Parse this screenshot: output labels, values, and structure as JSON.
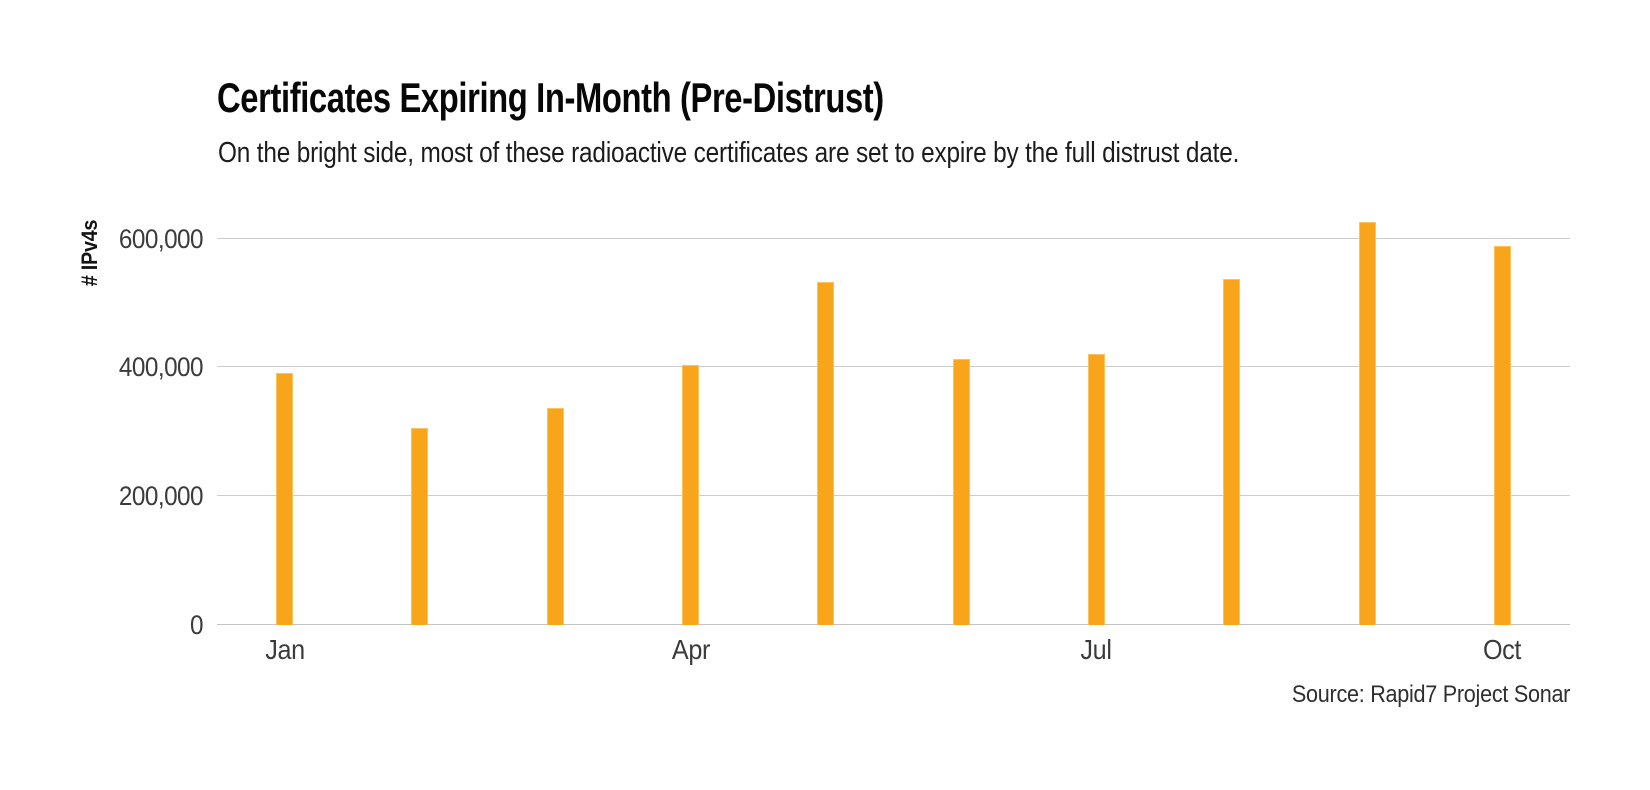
{
  "title": "Certificates Expiring In-Month (Pre-Distrust)",
  "subtitle": "On the bright side, most of these radioactive certificates are set to expire by the full distrust date.",
  "source": "Source: Rapid7 Project Sonar",
  "y_axis": {
    "title": "# IPv4s",
    "tick_labels": [
      "0",
      "200,000",
      "400,000",
      "600,000"
    ]
  },
  "x_axis": {
    "tick_labels": [
      "Jan",
      "Apr",
      "Jul",
      "Oct"
    ]
  },
  "colors": {
    "bar_fill": "#F9A51B",
    "bar_edge": "#FCC35C",
    "gridline": "#CCCCCC",
    "title_text": "#070707",
    "axis_text": "#3B3B3B"
  },
  "chart_data": {
    "type": "bar",
    "categories": [
      "Jan",
      "Feb",
      "Mar",
      "Apr",
      "May",
      "Jun",
      "Jul",
      "Aug",
      "Sep",
      "Oct"
    ],
    "values": [
      391000,
      306000,
      337000,
      404000,
      533000,
      413000,
      421000,
      538000,
      626000,
      589000
    ],
    "title": "Certificates Expiring In-Month (Pre-Distrust)",
    "subtitle": "On the bright side, most of these radioactive certificates are set to expire by the full distrust date.",
    "xlabel": "",
    "ylabel": "# IPv4s",
    "ylim": [
      0,
      650000
    ],
    "gridline_values": [
      0,
      200000,
      400000,
      600000
    ],
    "x_ticks_shown": [
      "Jan",
      "Apr",
      "Jul",
      "Oct"
    ],
    "legend": "none",
    "grid": "horizontal",
    "bar_color": "#F9A51B",
    "source": "Source: Rapid7 Project Sonar"
  }
}
